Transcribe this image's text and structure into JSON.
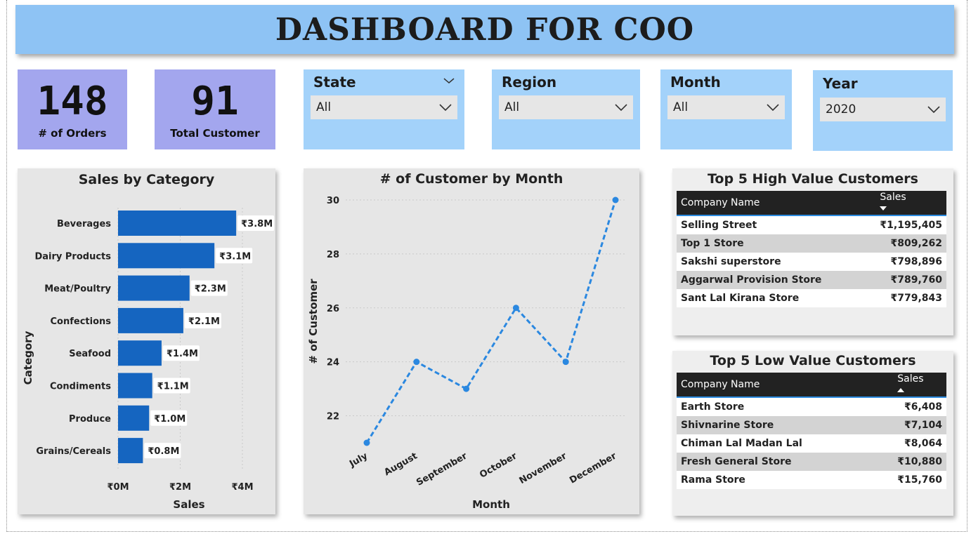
{
  "header": {
    "title": "DASHBOARD FOR COO"
  },
  "kpis": [
    {
      "value": "148",
      "label": "# of Orders"
    },
    {
      "value": "91",
      "label": "Total Customer"
    }
  ],
  "slicers": [
    {
      "title": "State",
      "value": "All"
    },
    {
      "title": "Region",
      "value": "All"
    },
    {
      "title": "Month",
      "value": "All"
    },
    {
      "title": "Year",
      "value": "2020"
    }
  ],
  "colors": {
    "header": "#8ec3f4",
    "kpi": "#a3a6ee",
    "slicer": "#a3d2fa",
    "bar": "#1565c0",
    "line": "#2b88e0"
  },
  "chart_data": [
    {
      "type": "bar",
      "orientation": "horizontal",
      "title": "Sales by Category",
      "xlabel": "Sales",
      "ylabel": "Category",
      "categories": [
        "Beverages",
        "Dairy Products",
        "Meat/Poultry",
        "Confections",
        "Seafood",
        "Condiments",
        "Produce",
        "Grains/Cereals"
      ],
      "values": [
        3.8,
        3.1,
        2.3,
        2.1,
        1.4,
        1.1,
        1.0,
        0.8
      ],
      "value_labels": [
        "₹3.8M",
        "₹3.1M",
        "₹2.3M",
        "₹2.1M",
        "₹1.4M",
        "₹1.1M",
        "₹1.0M",
        "₹0.8M"
      ],
      "xticks": [
        "₹0M",
        "₹2M",
        "₹4M"
      ],
      "xlim": [
        0,
        4
      ],
      "grid": true
    },
    {
      "type": "line",
      "title": "# of Customer by Month",
      "xlabel": "Month",
      "ylabel": "# of Customer",
      "categories": [
        "July",
        "August",
        "September",
        "October",
        "November",
        "December"
      ],
      "values": [
        21,
        24,
        23,
        26,
        24,
        30
      ],
      "yticks": [
        "22",
        "24",
        "26",
        "28",
        "30"
      ],
      "ylim": [
        21,
        30
      ],
      "style": "dashed",
      "grid": true
    }
  ],
  "top_customers": {
    "title": "Top 5 High Value Customers",
    "col_name": "Company Name",
    "col_sales": "Sales",
    "rows": [
      {
        "name": "Selling Street",
        "sales": "₹1,195,405"
      },
      {
        "name": "Top 1 Store",
        "sales": "₹809,262"
      },
      {
        "name": "Sakshi superstore",
        "sales": "₹798,896"
      },
      {
        "name": "Aggarwal Provision Store",
        "sales": "₹789,760"
      },
      {
        "name": "Sant Lal Kirana Store",
        "sales": "₹779,843"
      }
    ]
  },
  "low_customers": {
    "title": "Top 5 Low Value Customers",
    "col_name": "Company Name",
    "col_sales": "Sales",
    "rows": [
      {
        "name": "Earth Store",
        "sales": "₹6,408"
      },
      {
        "name": "Shivnarine Store",
        "sales": "₹7,104"
      },
      {
        "name": "Chiman Lal Madan Lal",
        "sales": "₹8,064"
      },
      {
        "name": "Fresh General Store",
        "sales": "₹10,880"
      },
      {
        "name": "Rama Store",
        "sales": "₹15,760"
      }
    ]
  }
}
